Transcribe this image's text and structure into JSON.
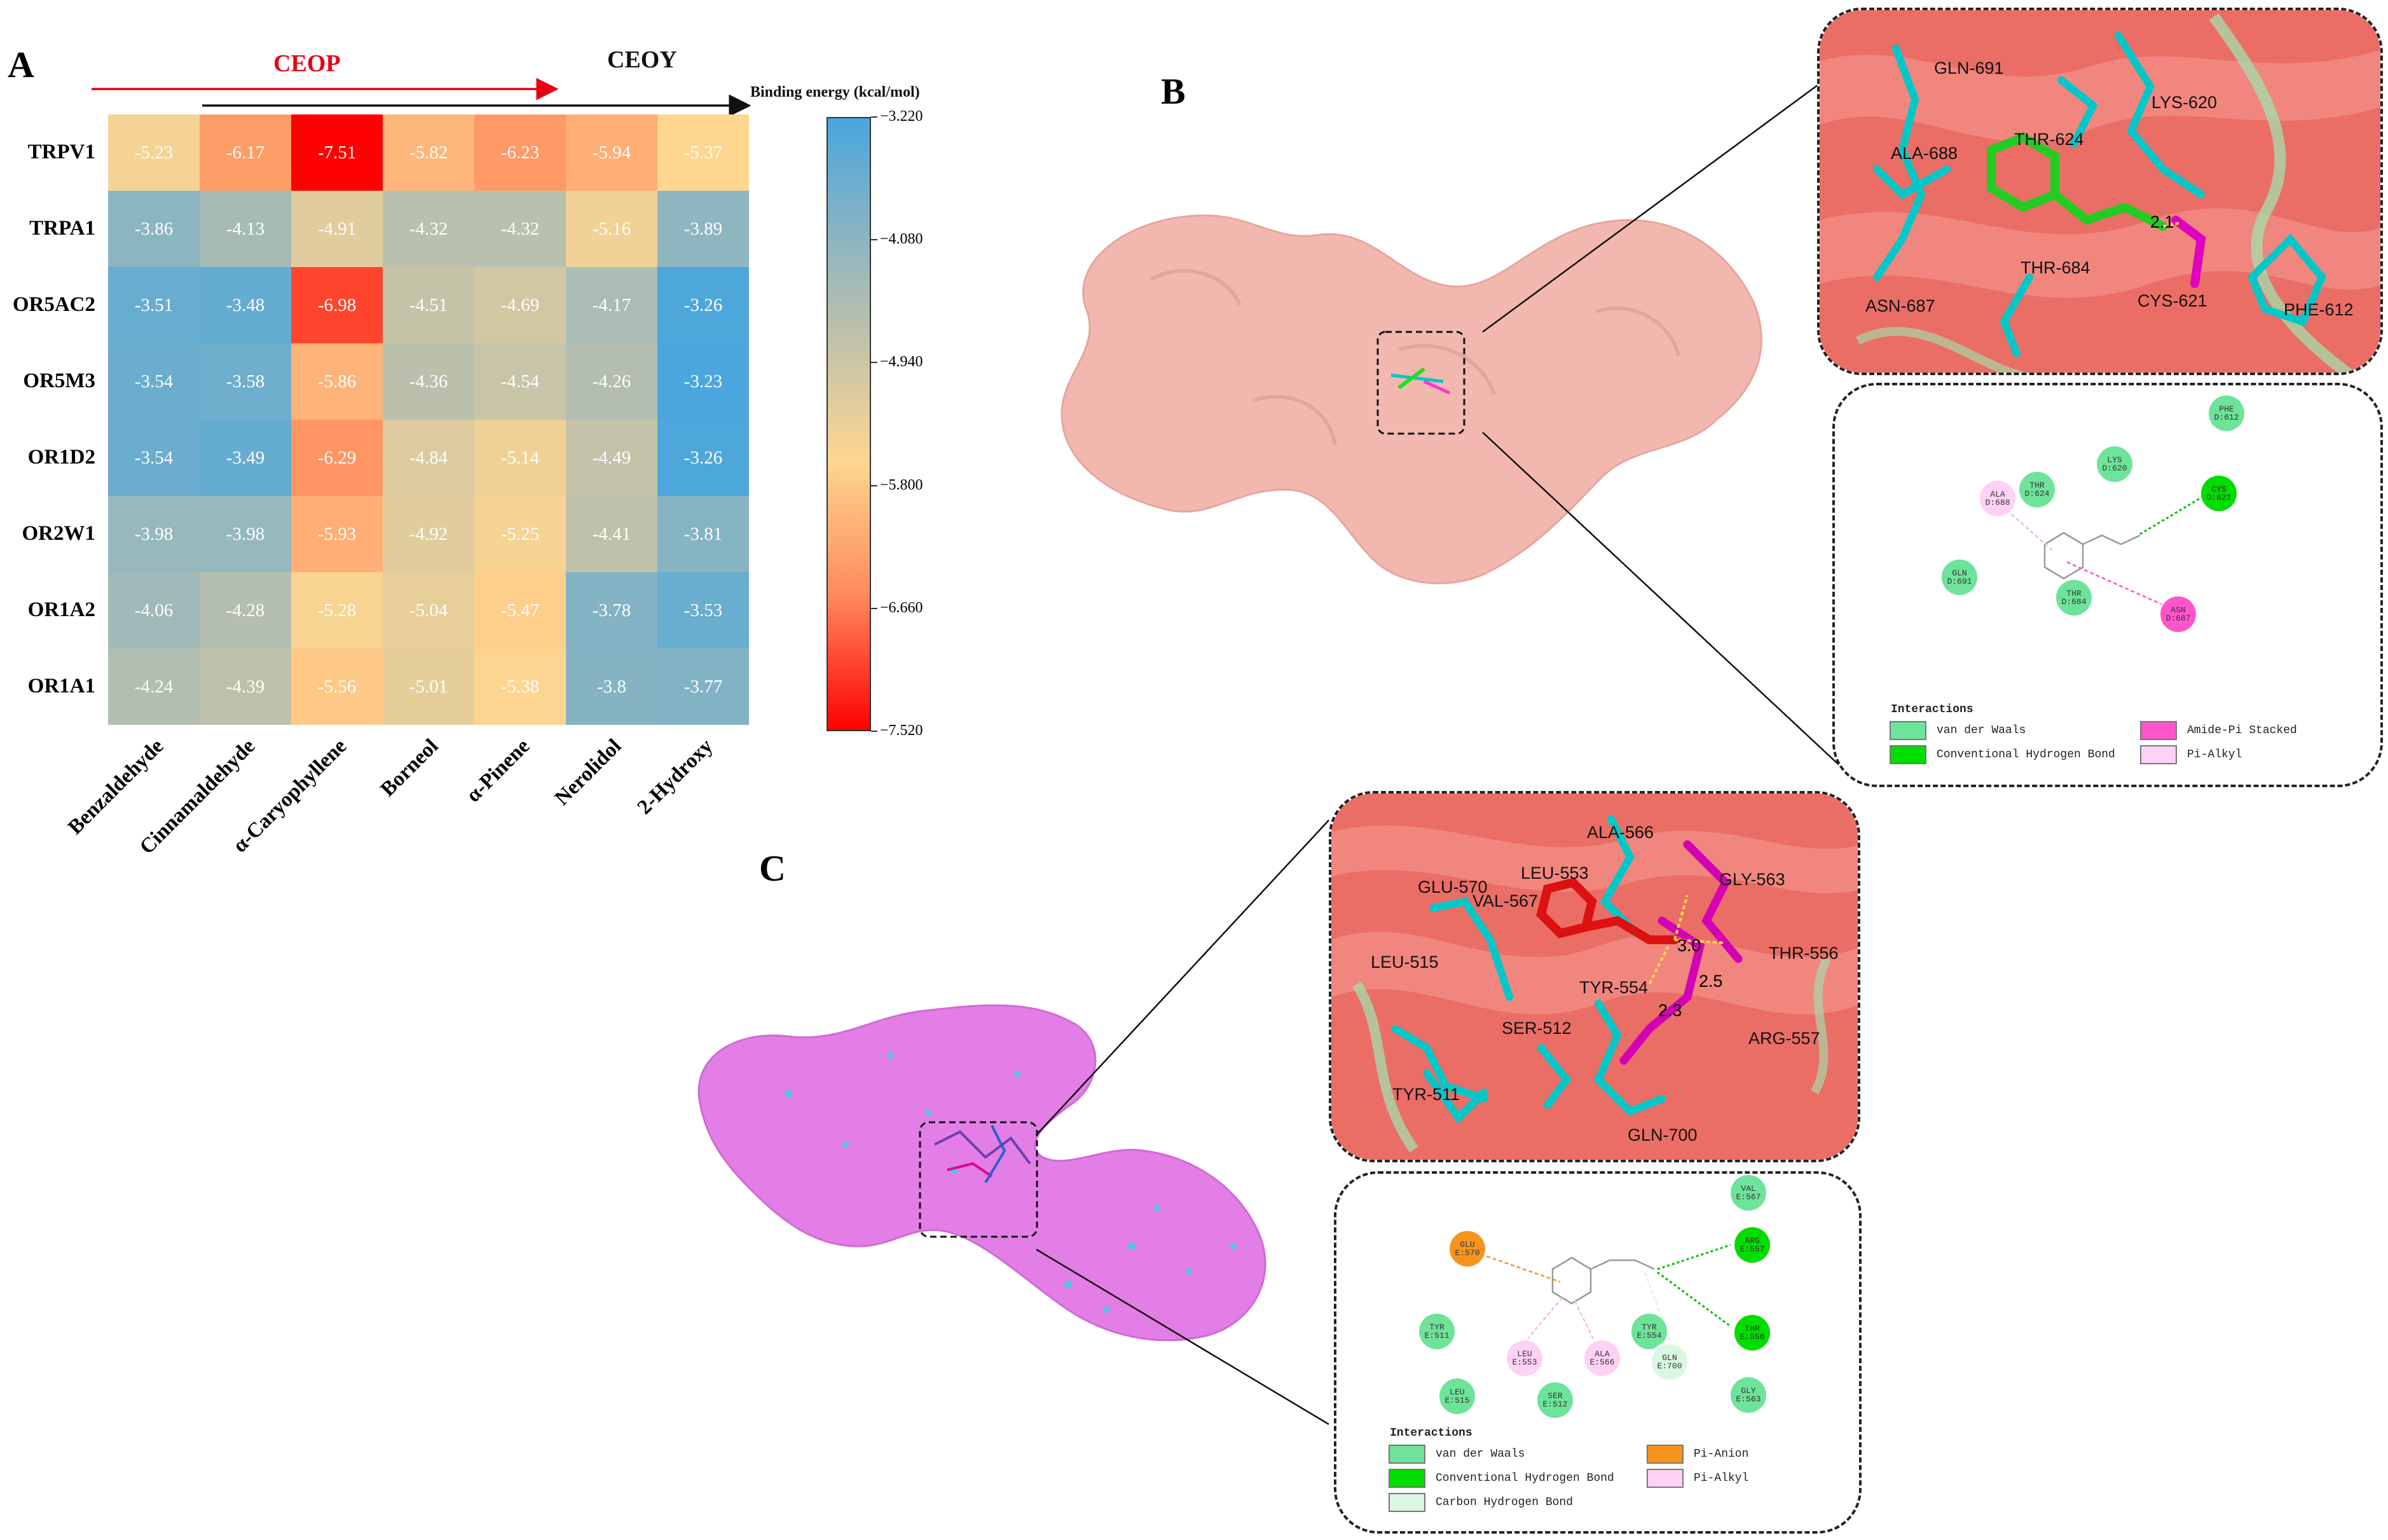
{
  "panels": {
    "a": "A",
    "b": "B",
    "c": "C"
  },
  "heatmap": {
    "ceop_label": "CEOP",
    "ceoy_label": "CEOY",
    "colorbar_title": "Binding energy (kcal/mol)",
    "colorbar_ticks": [
      "-3.220",
      "-4.080",
      "-4.940",
      "-5.800",
      "-6.660",
      "-7.520"
    ],
    "rows": [
      {
        "name": "TRPV1",
        "values": [
          "-5.23",
          "-6.17",
          "-7.51",
          "-5.82",
          "-6.23",
          "-5.94",
          "-5.37"
        ]
      },
      {
        "name": "TRPA1",
        "values": [
          "-3.86",
          "-4.13",
          "-4.91",
          "-4.32",
          "-4.32",
          "-5.16",
          "-3.89"
        ]
      },
      {
        "name": "OR5AC2",
        "values": [
          "-3.51",
          "-3.48",
          "-6.98",
          "-4.51",
          "-4.69",
          "-4.17",
          "-3.26"
        ]
      },
      {
        "name": "OR5M3",
        "values": [
          "-3.54",
          "-3.58",
          "-5.86",
          "-4.36",
          "-4.54",
          "-4.26",
          "-3.23"
        ]
      },
      {
        "name": "OR1D2",
        "values": [
          "-3.54",
          "-3.49",
          "-6.29",
          "-4.84",
          "-5.14",
          "-4.49",
          "-3.26"
        ]
      },
      {
        "name": "OR2W1",
        "values": [
          "-3.98",
          "-3.98",
          "-5.93",
          "-4.92",
          "-5.25",
          "-4.41",
          "-3.81"
        ]
      },
      {
        "name": "OR1A2",
        "values": [
          "-4.06",
          "-4.28",
          "-5.28",
          "-5.04",
          "-5.47",
          "-3.78",
          "-3.53"
        ]
      },
      {
        "name": "OR1A1",
        "values": [
          "-4.24",
          "-4.39",
          "-5.56",
          "-5.01",
          "-5.38",
          "-3.8",
          "-3.77"
        ]
      }
    ],
    "columns": [
      "Benzaldehyde",
      "Cinnamaldehyde",
      "α-Caryophyllene",
      "Borneol",
      "α-Pinene",
      "Nerolidol",
      "2-Hydroxy"
    ]
  },
  "chart_data": {
    "type": "heatmap",
    "title": "Binding energy (kcal/mol)",
    "x_categories": [
      "Benzaldehyde",
      "Cinnamaldehyde",
      "α-Caryophyllene",
      "Borneol",
      "α-Pinene",
      "Nerolidol",
      "2-Hydroxy"
    ],
    "y_categories": [
      "TRPV1",
      "TRPA1",
      "OR5AC2",
      "OR5M3",
      "OR1D2",
      "OR2W1",
      "OR1A2",
      "OR1A1"
    ],
    "values": [
      [
        -5.23,
        -6.17,
        -7.51,
        -5.82,
        -6.23,
        -5.94,
        -5.37
      ],
      [
        -3.86,
        -4.13,
        -4.91,
        -4.32,
        -4.32,
        -5.16,
        -3.89
      ],
      [
        -3.51,
        -3.48,
        -6.98,
        -4.51,
        -4.69,
        -4.17,
        -3.26
      ],
      [
        -3.54,
        -3.58,
        -5.86,
        -4.36,
        -4.54,
        -4.26,
        -3.23
      ],
      [
        -3.54,
        -3.49,
        -6.29,
        -4.84,
        -5.14,
        -4.49,
        -3.26
      ],
      [
        -3.98,
        -3.98,
        -5.93,
        -4.92,
        -5.25,
        -4.41,
        -3.81
      ],
      [
        -4.06,
        -4.28,
        -5.28,
        -5.04,
        -5.47,
        -3.78,
        -3.53
      ],
      [
        -4.24,
        -4.39,
        -5.56,
        -5.01,
        -5.38,
        -3.8,
        -3.77
      ]
    ],
    "color_range": [
      -7.52,
      -3.22
    ],
    "colormap": [
      "#ff0000",
      "#ff8a5c",
      "#fed690",
      "#b7bfae",
      "#4aa6dd"
    ]
  },
  "colors": {
    "ceop": "#e60012",
    "protein_b": "#f2b8b0",
    "protein_c": "#e27ee6",
    "vdw": "#6ee39a",
    "hbond": "#00dd00",
    "amide_pi": "#ff55cc",
    "pi_alkyl": "#ffd1f4",
    "pi_anion": "#f7941d",
    "carbon_h": "#d9f7e2"
  },
  "panel_b": {
    "residues": [
      "GLN-691",
      "ALA-688",
      "THR-624",
      "LYS-620",
      "ASN-687",
      "THR-684",
      "CYS-621",
      "PHE-612"
    ],
    "distance": "2.1",
    "nodes": [
      {
        "label": "PHE\nD:612",
        "type": "vdw"
      },
      {
        "label": "THR\nD:624",
        "type": "vdw"
      },
      {
        "label": "LYS\nD:620",
        "type": "vdw"
      },
      {
        "label": "CYS\nD:621",
        "type": "hbond"
      },
      {
        "label": "ALA\nD:688",
        "type": "pi_alkyl"
      },
      {
        "label": "GLN\nD:691",
        "type": "vdw"
      },
      {
        "label": "ASN\nD:687",
        "type": "amide_pi"
      },
      {
        "label": "THR\nD:684",
        "type": "vdw"
      }
    ],
    "legend_title": "Interactions",
    "legend": [
      "van der Waals",
      "Conventional Hydrogen Bond",
      "Amide-Pi Stacked",
      "Pi-Alkyl"
    ]
  },
  "panel_c": {
    "residues": [
      "ALA-566",
      "LEU-553",
      "GLU-570",
      "VAL-567",
      "GLY-563",
      "THR-556",
      "TYR-554",
      "LEU-515",
      "SER-512",
      "ARG-557",
      "TYR-511",
      "GLN-700"
    ],
    "distances": [
      "3.0",
      "2.5",
      "2.3"
    ],
    "nodes": [
      {
        "label": "VAL\nE:567",
        "type": "vdw"
      },
      {
        "label": "GLU\nE:570",
        "type": "pi_anion"
      },
      {
        "label": "ARG\nE:557",
        "type": "hbond"
      },
      {
        "label": "TYR\nE:511",
        "type": "vdw"
      },
      {
        "label": "TYR\nE:554",
        "type": "vdw"
      },
      {
        "label": "THR\nE:556",
        "type": "hbond"
      },
      {
        "label": "LEU\nE:553",
        "type": "pi_alkyl"
      },
      {
        "label": "ALA\nE:566",
        "type": "pi_alkyl"
      },
      {
        "label": "GLN\nE:700",
        "type": "carbon_h"
      },
      {
        "label": "LEU\nE:515",
        "type": "vdw"
      },
      {
        "label": "SER\nE:512",
        "type": "vdw"
      },
      {
        "label": "GLY\nE:563",
        "type": "vdw"
      }
    ],
    "legend_title": "Interactions",
    "legend": [
      "van der Waals",
      "Pi-Anion",
      "Conventional Hydrogen Bond",
      "Pi-Alkyl",
      "Carbon Hydrogen Bond"
    ]
  }
}
